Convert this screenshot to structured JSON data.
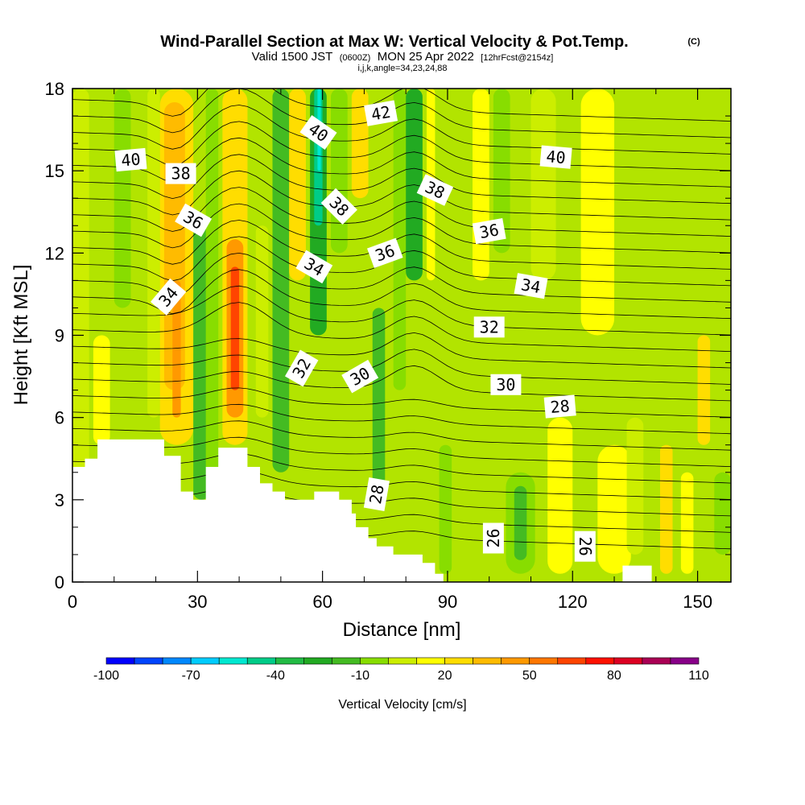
{
  "chart_data": {
    "type": "heatmap",
    "title": "Wind-Parallel Section at Max W: Vertical Velocity & Pot.Temp.",
    "title_mark": "(C)",
    "subtitle_main": "Valid 1500 JST",
    "subtitle_utc": "(0600Z)",
    "subtitle_date": "MON 25 Apr 2022",
    "subtitle_fcst": "[12hrFcst@2154z]",
    "subtitle_small": "i,j,k,angle=34,23,24,88",
    "xlabel": "Distance [nm]",
    "ylabel": "Height [Kft MSL]",
    "xlim": [
      0,
      158
    ],
    "ylim": [
      0,
      18
    ],
    "x_ticks": [
      0,
      30,
      60,
      90,
      120,
      150
    ],
    "y_ticks": [
      0,
      3,
      6,
      9,
      12,
      15,
      18
    ],
    "colorbar": {
      "label": "Vertical Velocity [cm/s]",
      "levels": [
        -100,
        -90,
        -80,
        -70,
        -60,
        -50,
        -40,
        -30,
        -20,
        -10,
        0,
        10,
        20,
        30,
        40,
        50,
        60,
        70,
        80,
        90,
        100,
        110
      ],
      "tick_labels": [
        -100,
        -70,
        -40,
        -10,
        20,
        50,
        80,
        110
      ],
      "colors": [
        "#0000ff",
        "#0044ff",
        "#0088ff",
        "#00ccff",
        "#00e8d0",
        "#00cc88",
        "#22bb44",
        "#22aa22",
        "#44bb22",
        "#88dd00",
        "#ccee00",
        "#ffff00",
        "#ffdd00",
        "#ffbb00",
        "#ff9900",
        "#ff7700",
        "#ff4400",
        "#ff1100",
        "#dd0022",
        "#aa0055",
        "#880088"
      ]
    },
    "theta_labels": [
      {
        "text": "40",
        "x": 14,
        "y": 15.4,
        "angle": -5
      },
      {
        "text": "38",
        "x": 26,
        "y": 14.9,
        "angle": 0
      },
      {
        "text": "36",
        "x": 29,
        "y": 13.2,
        "angle": 30
      },
      {
        "text": "34",
        "x": 23,
        "y": 10.4,
        "angle": -50
      },
      {
        "text": "40",
        "x": 59,
        "y": 16.4,
        "angle": 35
      },
      {
        "text": "38",
        "x": 64,
        "y": 13.7,
        "angle": 45
      },
      {
        "text": "34",
        "x": 58,
        "y": 11.5,
        "angle": 30
      },
      {
        "text": "42",
        "x": 74,
        "y": 17.1,
        "angle": -10
      },
      {
        "text": "36",
        "x": 75,
        "y": 12.0,
        "angle": -20
      },
      {
        "text": "38",
        "x": 87,
        "y": 14.3,
        "angle": 25
      },
      {
        "text": "36",
        "x": 100,
        "y": 12.8,
        "angle": -10
      },
      {
        "text": "40",
        "x": 116,
        "y": 15.5,
        "angle": 5
      },
      {
        "text": "34",
        "x": 110,
        "y": 10.8,
        "angle": 10
      },
      {
        "text": "32",
        "x": 100,
        "y": 9.3,
        "angle": 0
      },
      {
        "text": "32",
        "x": 55,
        "y": 7.8,
        "angle": -60
      },
      {
        "text": "30",
        "x": 69,
        "y": 7.5,
        "angle": -30
      },
      {
        "text": "30",
        "x": 104,
        "y": 7.2,
        "angle": 0
      },
      {
        "text": "28",
        "x": 117,
        "y": 6.4,
        "angle": -5
      },
      {
        "text": "28",
        "x": 73,
        "y": 3.2,
        "angle": -80
      },
      {
        "text": "26",
        "x": 101,
        "y": 1.6,
        "angle": -90
      },
      {
        "text": "26",
        "x": 123,
        "y": 1.3,
        "angle": 90
      }
    ],
    "terrain": [
      [
        0,
        4.2
      ],
      [
        3,
        4.2
      ],
      [
        3,
        4.5
      ],
      [
        6,
        4.5
      ],
      [
        6,
        5.2
      ],
      [
        22,
        5.2
      ],
      [
        22,
        4.6
      ],
      [
        26,
        4.6
      ],
      [
        26,
        3.3
      ],
      [
        29,
        3.3
      ],
      [
        29,
        3.0
      ],
      [
        32,
        3.0
      ],
      [
        32,
        4.2
      ],
      [
        35,
        4.2
      ],
      [
        35,
        4.9
      ],
      [
        42,
        4.9
      ],
      [
        42,
        4.2
      ],
      [
        45,
        4.2
      ],
      [
        45,
        3.6
      ],
      [
        48,
        3.6
      ],
      [
        48,
        3.3
      ],
      [
        51,
        3.3
      ],
      [
        51,
        3.0
      ],
      [
        58,
        3.0
      ],
      [
        58,
        3.3
      ],
      [
        64,
        3.3
      ],
      [
        64,
        3.0
      ],
      [
        67,
        3.0
      ],
      [
        67,
        2.5
      ],
      [
        68,
        2.5
      ],
      [
        68,
        2.0
      ],
      [
        71,
        2.0
      ],
      [
        71,
        1.6
      ],
      [
        73,
        1.6
      ],
      [
        73,
        1.3
      ],
      [
        77,
        1.3
      ],
      [
        77,
        1.0
      ],
      [
        84,
        1.0
      ],
      [
        84,
        0.7
      ],
      [
        87,
        0.7
      ],
      [
        87,
        0.3
      ],
      [
        89,
        0.3
      ],
      [
        89,
        0
      ],
      [
        132,
        0
      ],
      [
        132,
        0.6
      ],
      [
        139,
        0.6
      ],
      [
        139,
        0
      ]
    ]
  }
}
